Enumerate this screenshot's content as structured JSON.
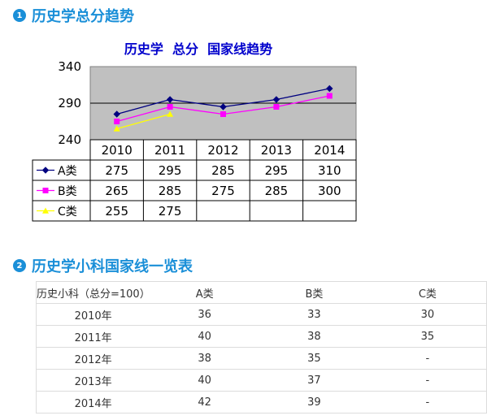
{
  "section1": {
    "number": "1",
    "title": "历史学总分趋势"
  },
  "section2": {
    "number": "2",
    "title": "历史学小科国家线一览表"
  },
  "chart_data": {
    "type": "line",
    "title": "历史学  总分  国家线趋势",
    "categories": [
      "2010",
      "2011",
      "2012",
      "2013",
      "2014"
    ],
    "y_ticks": [
      "340",
      "290",
      "240"
    ],
    "ylim": [
      240,
      340
    ],
    "gridline_value": 290,
    "plot_background": "#c0c0c0",
    "series": [
      {
        "name": "A类",
        "values": [
          275,
          295,
          285,
          295,
          310
        ],
        "labels": [
          "275",
          "295",
          "285",
          "295",
          "310"
        ],
        "color": "#000080",
        "marker": "diamond"
      },
      {
        "name": "B类",
        "values": [
          265,
          285,
          275,
          285,
          300
        ],
        "labels": [
          "265",
          "285",
          "275",
          "285",
          "300"
        ],
        "color": "#ff00ff",
        "marker": "square"
      },
      {
        "name": "C类",
        "values": [
          255,
          275,
          null,
          null,
          null
        ],
        "labels": [
          "255",
          "275",
          "",
          "",
          ""
        ],
        "color": "#ffff00",
        "marker": "triangle"
      }
    ]
  },
  "table": {
    "headers": [
      "历史小科（总分=100）",
      "A类",
      "B类",
      "C类"
    ],
    "rows": [
      [
        "2010年",
        "36",
        "33",
        "30"
      ],
      [
        "2011年",
        "40",
        "38",
        "35"
      ],
      [
        "2012年",
        "38",
        "35",
        "-"
      ],
      [
        "2013年",
        "40",
        "37",
        "-"
      ],
      [
        "2014年",
        "42",
        "39",
        "-"
      ]
    ]
  },
  "colors": {
    "accent": "#1a8fd8",
    "title_blue": "#0000cc"
  }
}
